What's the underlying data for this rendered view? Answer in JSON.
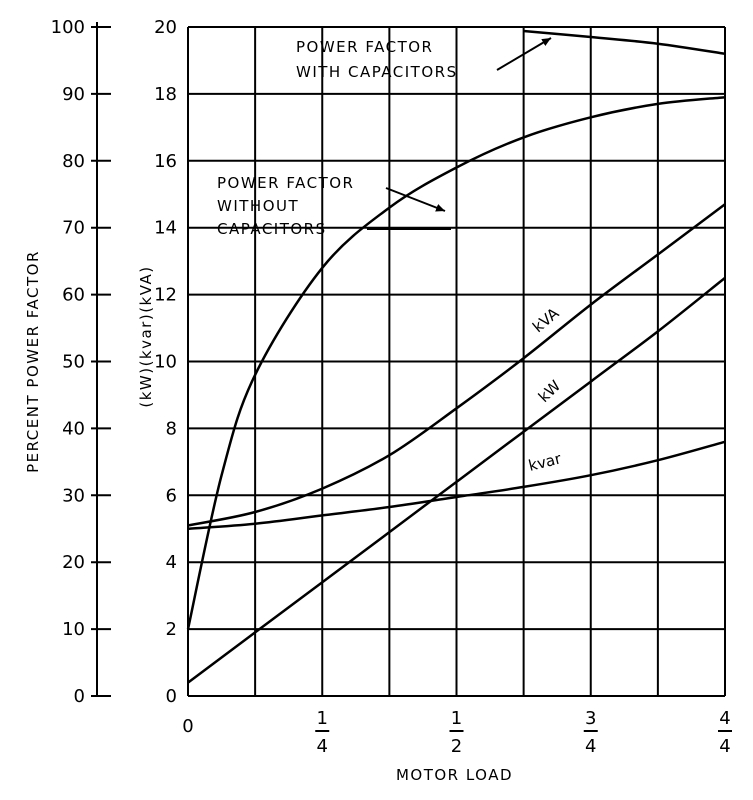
{
  "chart_data": {
    "type": "line",
    "xlabel": "MOTOR LOAD",
    "ylabel_left": "PERCENT POWER FACTOR",
    "ylabel_right": "(kW)(kvar)(kVA)",
    "x_ticks": [
      {
        "value": 0,
        "label": "0"
      },
      {
        "value": 0.25,
        "num": "1",
        "den": "4"
      },
      {
        "value": 0.5,
        "num": "1",
        "den": "2"
      },
      {
        "value": 0.75,
        "num": "3",
        "den": "4"
      },
      {
        "value": 1.0,
        "num": "4",
        "den": "4"
      }
    ],
    "xlim": [
      0,
      1
    ],
    "ylim_left": [
      0,
      100
    ],
    "ylim_right": [
      0,
      20
    ],
    "y_ticks_left": [
      "0",
      "10",
      "20",
      "30",
      "40",
      "50",
      "60",
      "70",
      "80",
      "90",
      "100"
    ],
    "y_ticks_right": [
      "0",
      "2",
      "4",
      "6",
      "8",
      "10",
      "12",
      "14",
      "16",
      "18",
      "20"
    ],
    "grid": true,
    "series": [
      {
        "name": "POWER FACTOR WITH CAPACITORS",
        "axis": "left",
        "x": [
          0.625,
          0.75,
          0.875,
          1.0
        ],
        "y": [
          99.4,
          98.5,
          97.5,
          96.0
        ]
      },
      {
        "name": "POWER FACTOR WITHOUT CAPACITORS",
        "axis": "left",
        "x": [
          0,
          0.0625,
          0.125,
          0.25,
          0.375,
          0.5,
          0.625,
          0.75,
          0.875,
          1.0
        ],
        "y": [
          10,
          33,
          48,
          64,
          73,
          79,
          83.5,
          86.5,
          88.5,
          89.5
        ]
      },
      {
        "name": "kVA",
        "axis": "right",
        "x": [
          0,
          0.125,
          0.25,
          0.375,
          0.5,
          0.625,
          0.75,
          0.875,
          1.0
        ],
        "y": [
          5.1,
          5.5,
          6.2,
          7.2,
          8.6,
          10.1,
          11.7,
          13.2,
          14.7
        ]
      },
      {
        "name": "kW",
        "axis": "right",
        "x": [
          0,
          0.125,
          0.25,
          0.375,
          0.5,
          0.625,
          0.75,
          0.875,
          1.0
        ],
        "y": [
          0.4,
          1.9,
          3.4,
          4.9,
          6.4,
          7.9,
          9.4,
          10.9,
          12.5
        ]
      },
      {
        "name": "kvar",
        "axis": "right",
        "x": [
          0,
          0.125,
          0.25,
          0.375,
          0.5,
          0.625,
          0.75,
          0.875,
          1.0
        ],
        "y": [
          5.0,
          5.15,
          5.4,
          5.65,
          5.95,
          6.25,
          6.6,
          7.05,
          7.6
        ]
      }
    ],
    "annotations": [
      {
        "lines": [
          "POWER FACTOR",
          "WITH CAPACITORS"
        ],
        "series": "POWER FACTOR WITH CAPACITORS"
      },
      {
        "lines": [
          "POWER FACTOR",
          "WITHOUT",
          "CAPACITORS"
        ],
        "series": "POWER FACTOR WITHOUT CAPACITORS"
      },
      {
        "lines": [
          "kVA"
        ],
        "series": "kVA"
      },
      {
        "lines": [
          "kW"
        ],
        "series": "kW"
      },
      {
        "lines": [
          "kvar"
        ],
        "series": "kvar"
      }
    ],
    "colors": {
      "line": "#000000",
      "background": "#ffffff",
      "grid": "#000000"
    }
  }
}
